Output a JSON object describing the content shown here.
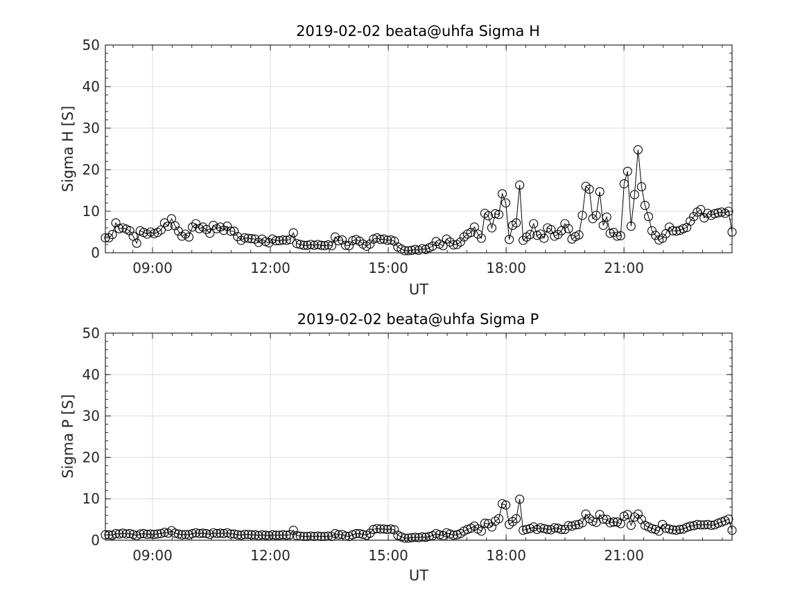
{
  "chart_data": [
    {
      "type": "line",
      "title": "2019-02-02  beata@uhfa Sigma H",
      "xlabel": "UT",
      "ylabel": "Sigma H [S]",
      "xlim": [
        "07:48",
        "23:45"
      ],
      "ylim": [
        0,
        50
      ],
      "xticks": [
        "09:00",
        "12:00",
        "15:00",
        "18:00",
        "21:00"
      ],
      "yticks": [
        "0",
        "10",
        "20",
        "30",
        "40",
        "50"
      ],
      "grid": true,
      "marker": "open-circle",
      "series": [
        {
          "values": [
            3.6,
            3.6,
            4.4,
            7.2,
            5.8,
            6.0,
            5.7,
            5.3,
            4.0,
            2.3,
            5.3,
            4.9,
            4.5,
            5.0,
            4.6,
            4.9,
            5.5,
            7.2,
            6.4,
            8.2,
            6.5,
            5.2,
            4.0,
            4.5,
            3.8,
            6.2,
            7.0,
            5.8,
            6.2,
            5.6,
            4.7,
            6.6,
            5.8,
            6.2,
            5.4,
            6.4,
            5.2,
            5.2,
            3.9,
            3.0,
            3.6,
            3.5,
            3.4,
            3.3,
            2.5,
            3.3,
            2.7,
            2.4,
            3.3,
            2.9,
            2.9,
            3.1,
            3.0,
            3.2,
            4.8,
            2.2,
            2.0,
            1.8,
            1.8,
            2.0,
            1.8,
            2.0,
            1.8,
            1.7,
            1.9,
            1.7,
            3.8,
            2.9,
            3.1,
            1.8,
            1.7,
            2.9,
            3.2,
            2.8,
            2.1,
            1.6,
            2.1,
            3.3,
            3.6,
            3.2,
            3.3,
            3.0,
            3.1,
            2.8,
            1.4,
            0.9,
            0.5,
            0.5,
            0.6,
            0.8,
            0.6,
            1.0,
            0.8,
            1.2,
            1.6,
            2.7,
            2.1,
            1.7,
            3.3,
            2.6,
            1.9,
            2.0,
            2.6,
            3.8,
            4.5,
            4.9,
            6.2,
            4.5,
            3.5,
            9.5,
            8.9,
            6.0,
            9.4,
            9.2,
            14.2,
            12.0,
            3.2,
            6.6,
            7.2,
            16.3,
            3.0,
            3.8,
            4.4,
            7.0,
            4.2,
            4.5,
            3.5,
            6.0,
            5.6,
            4.0,
            4.4,
            5.3,
            7.0,
            5.8,
            3.3,
            3.9,
            4.3,
            9.0,
            16.0,
            15.3,
            8.2,
            9.0,
            14.7,
            6.6,
            8.6,
            4.7,
            4.9,
            4.0,
            4.1,
            16.6,
            19.6,
            6.4,
            14.0,
            24.8,
            15.9,
            11.4,
            8.7,
            5.3,
            4.2,
            3.1,
            3.5,
            4.6,
            6.2,
            5.3,
            5.2,
            5.4,
            5.8,
            6.1,
            7.6,
            8.7,
            9.8,
            10.4,
            8.4,
            9.5,
            9.0,
            9.4,
            9.6,
            9.8,
            9.5,
            10.0,
            5.0
          ]
        }
      ]
    },
    {
      "type": "line",
      "title": "2019-02-02  beata@uhfa Sigma P",
      "xlabel": "UT",
      "ylabel": "Sigma P [S]",
      "xlim": [
        "07:48",
        "23:45"
      ],
      "ylim": [
        0,
        50
      ],
      "xticks": [
        "09:00",
        "12:00",
        "15:00",
        "18:00",
        "21:00"
      ],
      "yticks": [
        "0",
        "10",
        "20",
        "30",
        "40",
        "50"
      ],
      "grid": true,
      "marker": "open-circle",
      "series": [
        {
          "values": [
            1.3,
            1.3,
            1.2,
            1.6,
            1.5,
            1.7,
            1.5,
            1.6,
            1.4,
            1.1,
            1.5,
            1.6,
            1.4,
            1.5,
            1.4,
            1.5,
            1.6,
            1.9,
            1.7,
            2.3,
            1.7,
            1.5,
            1.3,
            1.4,
            1.3,
            1.6,
            1.8,
            1.6,
            1.7,
            1.6,
            1.4,
            1.8,
            1.6,
            1.7,
            1.6,
            1.8,
            1.5,
            1.5,
            1.3,
            1.2,
            1.4,
            1.4,
            1.3,
            1.3,
            1.1,
            1.3,
            1.2,
            1.1,
            1.3,
            1.2,
            1.2,
            1.3,
            1.2,
            1.3,
            2.4,
            1.1,
            1.0,
            0.9,
            0.9,
            1.0,
            0.9,
            1.0,
            0.9,
            0.9,
            1.0,
            0.9,
            1.6,
            1.3,
            1.4,
            1.0,
            0.9,
            1.3,
            1.6,
            1.6,
            1.4,
            1.2,
            1.7,
            2.6,
            2.8,
            2.7,
            2.7,
            2.6,
            2.7,
            2.5,
            1.2,
            0.8,
            0.5,
            0.5,
            0.6,
            0.7,
            0.6,
            0.8,
            0.7,
            0.9,
            1.1,
            1.6,
            1.3,
            1.1,
            1.8,
            1.5,
            1.2,
            1.3,
            1.6,
            2.2,
            2.6,
            2.9,
            3.4,
            2.7,
            2.2,
            4.1,
            4.0,
            3.2,
            4.6,
            5.2,
            8.8,
            8.5,
            3.8,
            4.5,
            5.2,
            9.9,
            2.4,
            2.6,
            2.8,
            3.2,
            2.6,
            3.0,
            2.8,
            2.6,
            2.5,
            3.0,
            2.9,
            2.6,
            2.6,
            3.5,
            3.4,
            3.7,
            3.8,
            4.2,
            6.3,
            5.2,
            4.6,
            4.3,
            6.2,
            5.1,
            5.0,
            4.2,
            4.4,
            4.4,
            4.0,
            5.8,
            6.2,
            3.6,
            5.6,
            6.3,
            5.0,
            3.6,
            3.2,
            2.8,
            2.6,
            2.2,
            3.8,
            2.9,
            2.7,
            2.5,
            2.4,
            2.6,
            2.7,
            3.1,
            3.4,
            3.5,
            3.8,
            3.7,
            3.7,
            3.8,
            3.6,
            3.7,
            4.1,
            4.4,
            4.7,
            5.1,
            2.4
          ]
        }
      ]
    }
  ]
}
